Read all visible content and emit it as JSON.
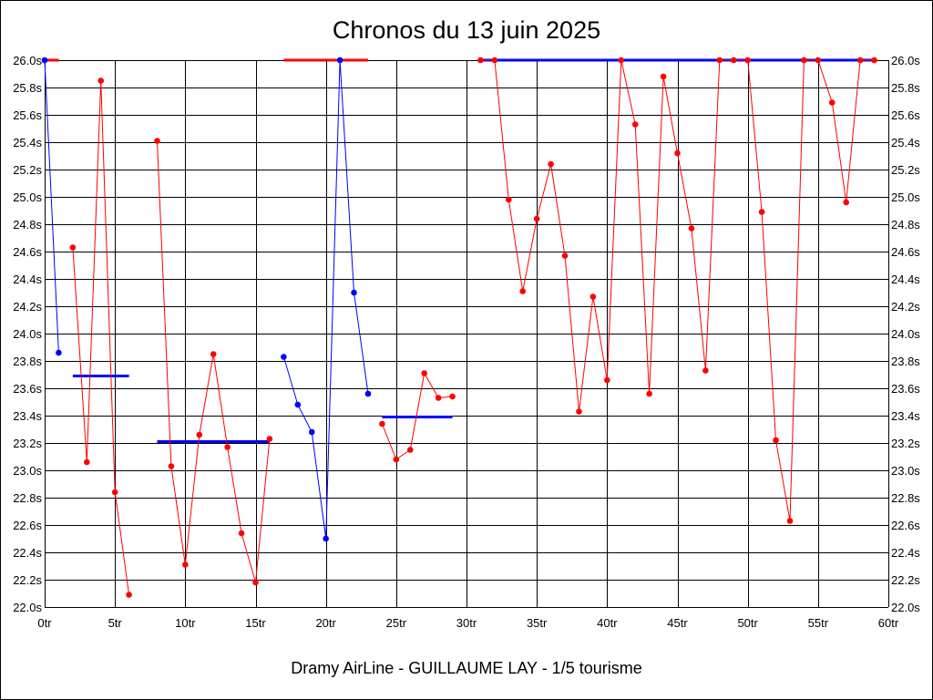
{
  "chart_data": {
    "type": "line",
    "title": "Chronos du 13 juin 2025",
    "caption": "Dramy AirLine - GUILLAUME LAY - 1/5 tourisme",
    "xlim": [
      0,
      60
    ],
    "ylim": [
      22.0,
      26.0
    ],
    "grid": true,
    "xticks": [
      0,
      5,
      10,
      15,
      20,
      25,
      30,
      35,
      40,
      45,
      50,
      55,
      60
    ],
    "xtick_labels": [
      "0tr",
      "5tr",
      "10tr",
      "15tr",
      "20tr",
      "25tr",
      "30tr",
      "35tr",
      "40tr",
      "45tr",
      "50tr",
      "55tr",
      "60tr"
    ],
    "yticks": [
      22.0,
      22.2,
      22.4,
      22.6,
      22.8,
      23.0,
      23.2,
      23.4,
      23.6,
      23.8,
      24.0,
      24.2,
      24.4,
      24.6,
      24.8,
      25.0,
      25.2,
      25.4,
      25.6,
      25.8,
      26.0
    ],
    "ytick_labels": [
      "22.0s",
      "22.2s",
      "22.4s",
      "22.6s",
      "22.8s",
      "23.0s",
      "23.2s",
      "23.4s",
      "23.6s",
      "23.8s",
      "24.0s",
      "24.2s",
      "24.4s",
      "24.6s",
      "24.8s",
      "25.0s",
      "25.2s",
      "25.4s",
      "25.6s",
      "25.8s",
      "26.0s"
    ],
    "colors": {
      "red": "#ff0000",
      "blue": "#0000ff",
      "grid": "#000000"
    },
    "series": [
      {
        "color": "blue",
        "points": [
          [
            0,
            26.0
          ],
          [
            1,
            23.86
          ]
        ]
      },
      {
        "color": "red",
        "points": [
          [
            2,
            24.63
          ],
          [
            3,
            23.06
          ],
          [
            4,
            25.85
          ],
          [
            5,
            22.84
          ],
          [
            6,
            22.09
          ]
        ]
      },
      {
        "color": "red",
        "points": [
          [
            8,
            25.41
          ],
          [
            9,
            23.03
          ],
          [
            10,
            22.31
          ],
          [
            11,
            23.26
          ],
          [
            12,
            23.85
          ],
          [
            13,
            23.17
          ],
          [
            14,
            22.54
          ],
          [
            15,
            22.18
          ],
          [
            16,
            23.23
          ]
        ]
      },
      {
        "color": "blue",
        "points": [
          [
            17,
            23.83
          ],
          [
            18,
            23.48
          ],
          [
            19,
            23.28
          ],
          [
            20,
            22.5
          ],
          [
            21,
            26.0
          ],
          [
            22,
            24.3
          ],
          [
            23,
            23.56
          ]
        ]
      },
      {
        "color": "red",
        "points": [
          [
            24,
            23.34
          ],
          [
            25,
            23.08
          ],
          [
            26,
            23.15
          ],
          [
            27,
            23.71
          ],
          [
            28,
            23.53
          ],
          [
            29,
            23.54
          ]
        ]
      },
      {
        "color": "red",
        "points": [
          [
            31,
            26.0
          ],
          [
            32,
            26.0
          ],
          [
            33,
            24.98
          ],
          [
            34,
            24.31
          ],
          [
            35,
            24.84
          ],
          [
            36,
            25.24
          ],
          [
            37,
            24.57
          ],
          [
            38,
            23.43
          ],
          [
            39,
            24.27
          ],
          [
            40,
            23.66
          ],
          [
            41,
            26.0
          ],
          [
            42,
            25.53
          ],
          [
            43,
            23.56
          ],
          [
            44,
            25.88
          ],
          [
            45,
            25.32
          ],
          [
            46,
            24.77
          ],
          [
            47,
            23.73
          ],
          [
            48,
            26.0
          ],
          [
            49,
            26.0
          ],
          [
            50,
            26.0
          ],
          [
            51,
            24.89
          ],
          [
            52,
            23.22
          ],
          [
            53,
            22.63
          ],
          [
            54,
            26.0
          ],
          [
            55,
            26.0
          ],
          [
            56,
            25.69
          ],
          [
            57,
            24.96
          ],
          [
            58,
            26.0
          ],
          [
            59,
            26.0
          ]
        ]
      }
    ],
    "reference_lines": [
      {
        "color": "red",
        "x": [
          0,
          1
        ],
        "y": 26.0
      },
      {
        "color": "blue",
        "x": [
          2,
          6
        ],
        "y": 23.69
      },
      {
        "color": "blue",
        "x": [
          8,
          16
        ],
        "y": 23.21
      },
      {
        "color": "red",
        "x": [
          17,
          23
        ],
        "y": 26.0
      },
      {
        "color": "blue",
        "x": [
          24,
          29
        ],
        "y": 23.39
      },
      {
        "color": "blue",
        "x": [
          31,
          59
        ],
        "y": 26.0
      }
    ]
  }
}
